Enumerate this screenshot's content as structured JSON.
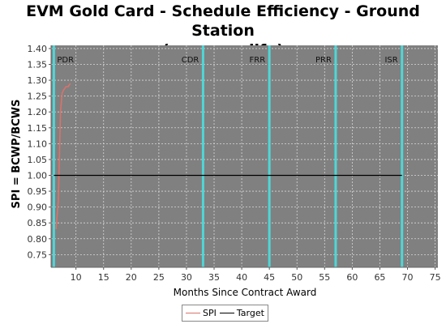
{
  "chart_data": {
    "type": "line",
    "title_line1": "EVM Gold Card - Schedule Efficiency - Ground Station",
    "title_line2": "(program life)",
    "xlabel": "Months Since Contract Award",
    "ylabel": "SPI = BCWP/BCWS",
    "xlim": [
      5.5,
      75.5
    ],
    "ylim": [
      0.71,
      1.41
    ],
    "x_ticks": [
      10,
      15,
      20,
      25,
      30,
      35,
      40,
      45,
      50,
      55,
      60,
      65,
      70,
      75
    ],
    "y_ticks": [
      0.75,
      0.8,
      0.85,
      0.9,
      0.95,
      1.0,
      1.05,
      1.1,
      1.15,
      1.2,
      1.25,
      1.3,
      1.35,
      1.4
    ],
    "y_tick_labels": [
      "0.75",
      "0.80",
      "0.85",
      "0.90",
      "0.95",
      "1.00",
      "1.05",
      "1.10",
      "1.15",
      "1.20",
      "1.25",
      "1.30",
      "1.35",
      "1.40"
    ],
    "milestones": [
      {
        "label": "PDR",
        "x": 6
      },
      {
        "label": "CDR",
        "x": 33
      },
      {
        "label": "FRR",
        "x": 45
      },
      {
        "label": "PRR",
        "x": 57
      },
      {
        "label": "ISR",
        "x": 69
      }
    ],
    "series": [
      {
        "name": "SPI",
        "color": "#d9736a",
        "x": [
          6.4,
          6.8,
          7.0,
          7.2,
          7.5,
          7.8,
          8.2,
          8.6,
          9.0
        ],
        "y": [
          0.83,
          0.92,
          1.05,
          1.2,
          1.26,
          1.27,
          1.28,
          1.28,
          1.29
        ]
      },
      {
        "name": "Target",
        "color": "#000000",
        "x": [
          6,
          69
        ],
        "y": [
          1.0,
          1.0
        ]
      }
    ],
    "legend": [
      "SPI",
      "Target"
    ],
    "grid": true,
    "plot_bg": "#808080",
    "milestone_color": "#4fd6d6"
  }
}
